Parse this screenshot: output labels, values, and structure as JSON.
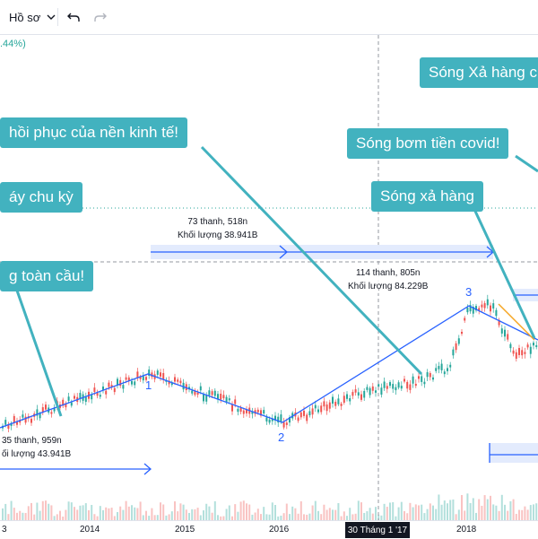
{
  "toolbar": {
    "profile_label": "Hồ sơ",
    "dropdown_icon": "chevron-down-icon",
    "undo_icon": "undo-icon",
    "redo_icon": "redo-icon"
  },
  "legend": {
    "change_pct": ".44%)"
  },
  "callouts": {
    "song_xa_hang_c": "Sóng Xả hàng c",
    "hoi_phuc": "hồi phục của nền kinh tế!",
    "bom_tien": "Sóng bơm tiền covid!",
    "day_chu_ky": "áy chu kỳ",
    "xa_hang": "Sóng xả hàng",
    "toan_cau": "g toàn cầu!"
  },
  "measures": {
    "m1": {
      "line1": "73 thanh, 518n",
      "line2": "Khối lượng 38.941B"
    },
    "m2": {
      "line1": "114 thanh, 805n",
      "line2": "Khối lượng 84.229B"
    },
    "m3": {
      "line1": "35 thanh, 959n",
      "line2": "ối lượng 43.941B"
    }
  },
  "waves": {
    "w1": "1",
    "w2": "2",
    "w3": "3"
  },
  "xaxis": {
    "t0": "3",
    "t1": "2014",
    "t2": "2015",
    "t3": "2016",
    "t4": "2018",
    "highlight": "30 Tháng 1 '17"
  },
  "colors": {
    "callout": "#42b2bf",
    "wave_line": "#2962ff",
    "candle_up": "#26a69a",
    "candle_down": "#ef5350",
    "measure_fill": "#e3ebfd",
    "trend_orange": "#f5a623"
  }
}
